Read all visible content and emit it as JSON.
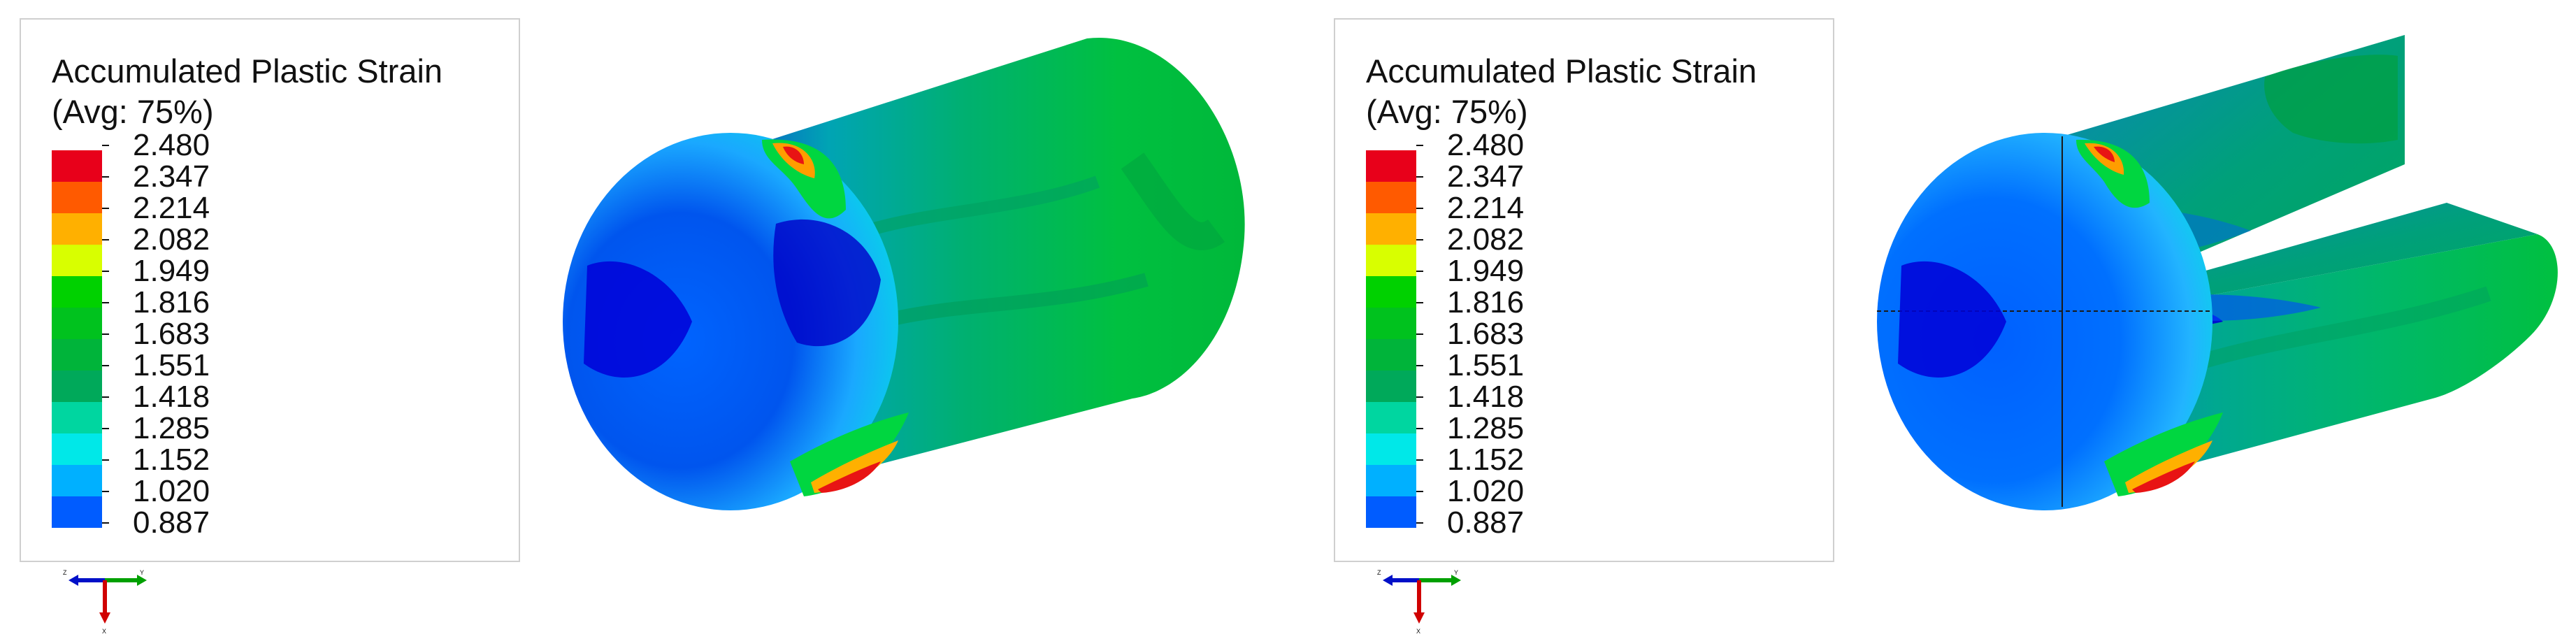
{
  "legend": {
    "title": "Accumulated Plastic Strain",
    "subtitle": "(Avg: 75%)",
    "values": [
      "2.480",
      "2.347",
      "2.214",
      "2.082",
      "1.949",
      "1.816",
      "1.683",
      "1.551",
      "1.418",
      "1.285",
      "1.152",
      "1.020",
      "0.887"
    ],
    "colors": [
      "#e8001a",
      "#ff5a00",
      "#ffb000",
      "#d8ff00",
      "#00d100",
      "#00c21e",
      "#00b43a",
      "#00a95a",
      "#00d6a0",
      "#00e8e8",
      "#00b0ff",
      "#005cff",
      "#0000e6"
    ]
  },
  "triad": {
    "x_label": "X",
    "y_label": "Y",
    "z_label": "Z"
  },
  "panels": [
    {
      "id": "full-cylinder"
    },
    {
      "id": "cut-cylinder"
    }
  ]
}
